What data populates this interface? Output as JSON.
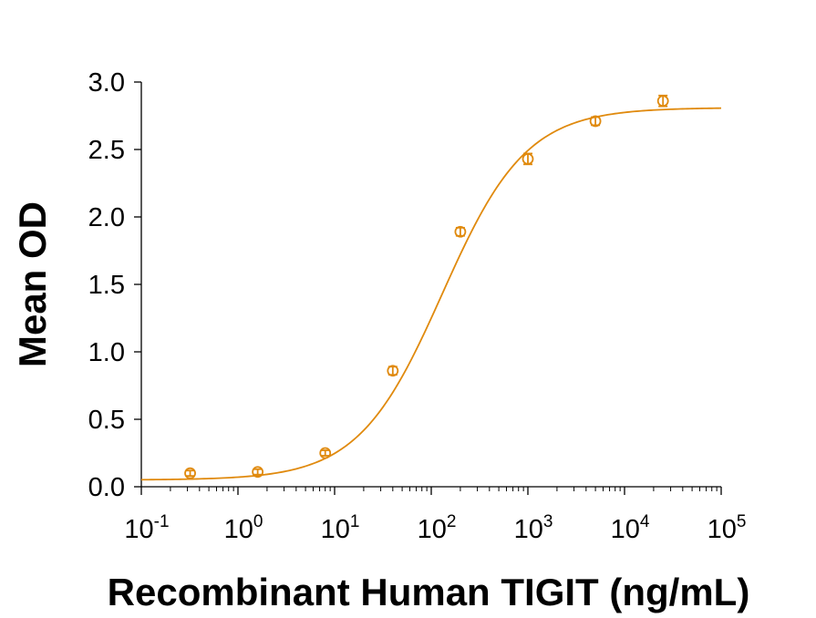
{
  "chart_data": {
    "type": "scatter",
    "title": "",
    "xlabel": "Recombinant Human TIGIT (ng/mL)",
    "ylabel": "Mean OD",
    "x_scale": "log",
    "xlim": [
      0.1,
      100000
    ],
    "ylim": [
      0,
      3.0
    ],
    "grid": false,
    "legend": "none",
    "x_ticks": [
      {
        "base": "10",
        "exp": "-1"
      },
      {
        "base": "10",
        "exp": "0"
      },
      {
        "base": "10",
        "exp": "1"
      },
      {
        "base": "10",
        "exp": "2"
      },
      {
        "base": "10",
        "exp": "3"
      },
      {
        "base": "10",
        "exp": "4"
      },
      {
        "base": "10",
        "exp": "5"
      }
    ],
    "y_ticks": [
      "0.0",
      "0.5",
      "1.0",
      "1.5",
      "2.0",
      "2.5",
      "3.0"
    ],
    "color": "#e08a0e",
    "points": [
      {
        "x": 0.32,
        "y": 0.1,
        "err": 0.02
      },
      {
        "x": 1.6,
        "y": 0.11,
        "err": 0.02
      },
      {
        "x": 8.0,
        "y": 0.25,
        "err": 0.02
      },
      {
        "x": 40,
        "y": 0.86,
        "err": 0.03
      },
      {
        "x": 200,
        "y": 1.89,
        "err": 0.03
      },
      {
        "x": 1000,
        "y": 2.43,
        "err": 0.04
      },
      {
        "x": 5000,
        "y": 2.71,
        "err": 0.03
      },
      {
        "x": 25000,
        "y": 2.86,
        "err": 0.04
      }
    ],
    "fit": {
      "model": "4PL",
      "bottom": 0.05,
      "top": 2.81,
      "ec50": 130,
      "hill": 1.0
    }
  }
}
